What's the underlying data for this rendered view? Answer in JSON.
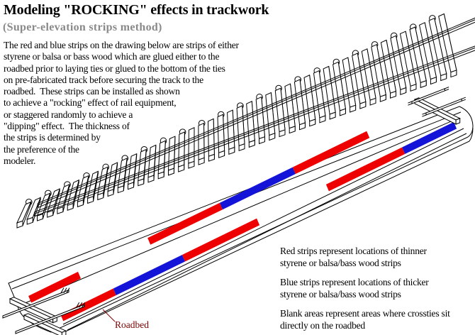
{
  "title": "Modeling \"ROCKING\" effects in trackwork",
  "subtitle": "(Super-elevation strips method)",
  "paragraph_lines": [
    "The red and blue strips on the drawing below are strips of either",
    "styrene or balsa or bass wood which are glued either to the",
    "roadbed prior to laying ties or glued to the bottom of the ties",
    "on pre-fabricated track before securing the track to the",
    "roadbed.  These strips can be installed as shown",
    "to achieve a \"rocking\" effect of rail equipment,",
    "or staggered randomly to achieve a",
    "\"dipping\" effect.  The thickness of",
    "the strips is determined by",
    "the preference of the",
    "modeler."
  ],
  "captions": [
    {
      "line1": "Red strips represent locations of thinner",
      "line2": "styrene or balsa/bass wood strips"
    },
    {
      "line1": "Blue strips represent locations of thicker",
      "line2": "styrene or balsa/bass wood strips"
    },
    {
      "line1": "Blank areas represent areas where crossties sit",
      "line2": "directly on the roadbed"
    }
  ],
  "roadbed_label": "Roadbed",
  "diagram": {
    "colors": {
      "strip_red": "#ee0000",
      "strip_blue": "#1414d8",
      "outline": "#000000",
      "label": "#7c0000",
      "fill": "#ffffff"
    },
    "track": {
      "tie_count": 44,
      "bump_interval": 2,
      "rail_count": 2
    },
    "roadbed_strips": {
      "lane1": [
        {
          "s0": 0.004,
          "s1": 0.138,
          "color": "red"
        },
        {
          "s0": 0.326,
          "s1": 0.521,
          "color": "red"
        },
        {
          "s0": 0.521,
          "s1": 0.718,
          "color": "blue"
        },
        {
          "s0": 0.718,
          "s1": 0.918,
          "color": "red"
        }
      ],
      "lane2": [
        {
          "s0": 0.004,
          "s1": 0.136,
          "color": "red"
        },
        {
          "s0": 0.136,
          "s1": 0.308,
          "color": "blue"
        },
        {
          "s0": 0.308,
          "s1": 0.494,
          "color": "red"
        },
        {
          "s0": 0.667,
          "s1": 0.857,
          "color": "red"
        },
        {
          "s0": 0.857,
          "s1": 0.986,
          "color": "blue"
        }
      ]
    }
  }
}
